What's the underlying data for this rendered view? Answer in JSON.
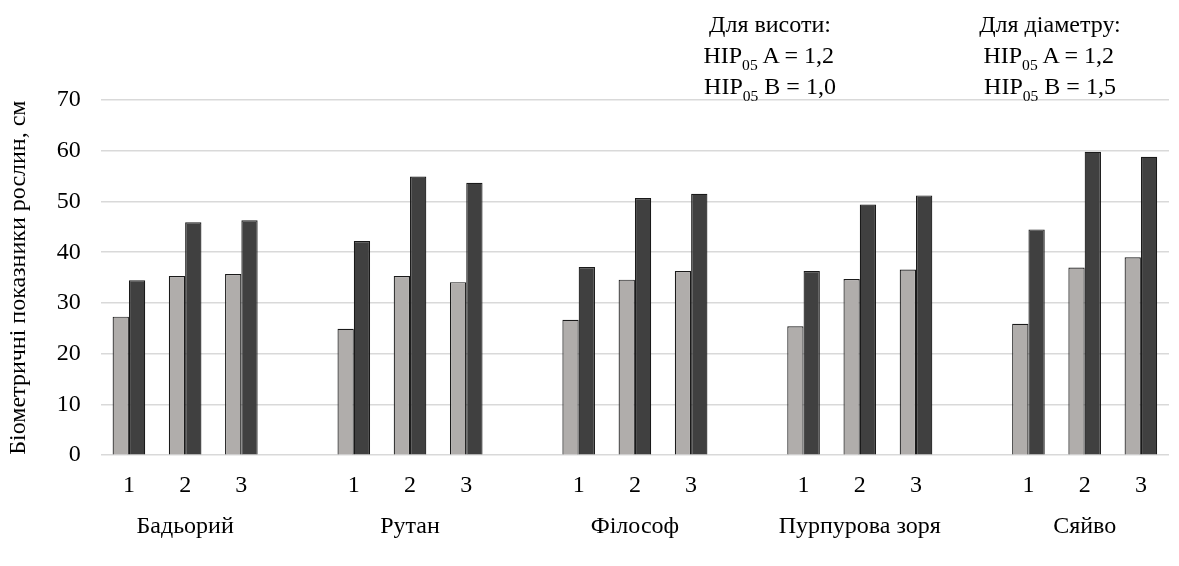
{
  "chart_data": {
    "type": "bar",
    "ylabel": "Біометричні показники рослин, см",
    "categories": [
      "1",
      "2",
      "3",
      null,
      "1",
      "2",
      "3",
      null,
      "1",
      "2",
      "3",
      null,
      "1",
      "2",
      "3",
      null,
      "1",
      "2",
      "3"
    ],
    "series": [
      {
        "color": "#b0adab",
        "values": [
          27.3,
          35.3,
          35.7,
          null,
          24.9,
          35.3,
          34.1,
          null,
          26.7,
          34.6,
          36.3,
          null,
          25.4,
          34.7,
          36.6,
          null,
          25.9,
          37.0,
          39.0
        ]
      },
      {
        "color": "#404040",
        "values": [
          34.5,
          45.9,
          46.3,
          null,
          42.2,
          54.9,
          53.7,
          null,
          37.1,
          50.7,
          51.5,
          null,
          36.3,
          49.4,
          51.2,
          null,
          44.5,
          59.8,
          58.8
        ]
      }
    ],
    "ylim": [
      0,
      70
    ],
    "yticks": [
      0,
      10,
      20,
      30,
      40,
      50,
      60,
      70
    ],
    "grid": "y",
    "legend": false,
    "annotations": [
      "Бадьорий",
      "Рутан",
      "Філософ",
      "Пурпурова зоря",
      "Сяйво",
      "Для висоти:",
      "HIP$_{05}$ A = 1,2",
      "HIP$_{05}$ B = 1,0",
      "Для діаметру:",
      "HIP$_{05}$ A = 1,2",
      "HIP$_{05}$ B = 1,5"
    ]
  }
}
